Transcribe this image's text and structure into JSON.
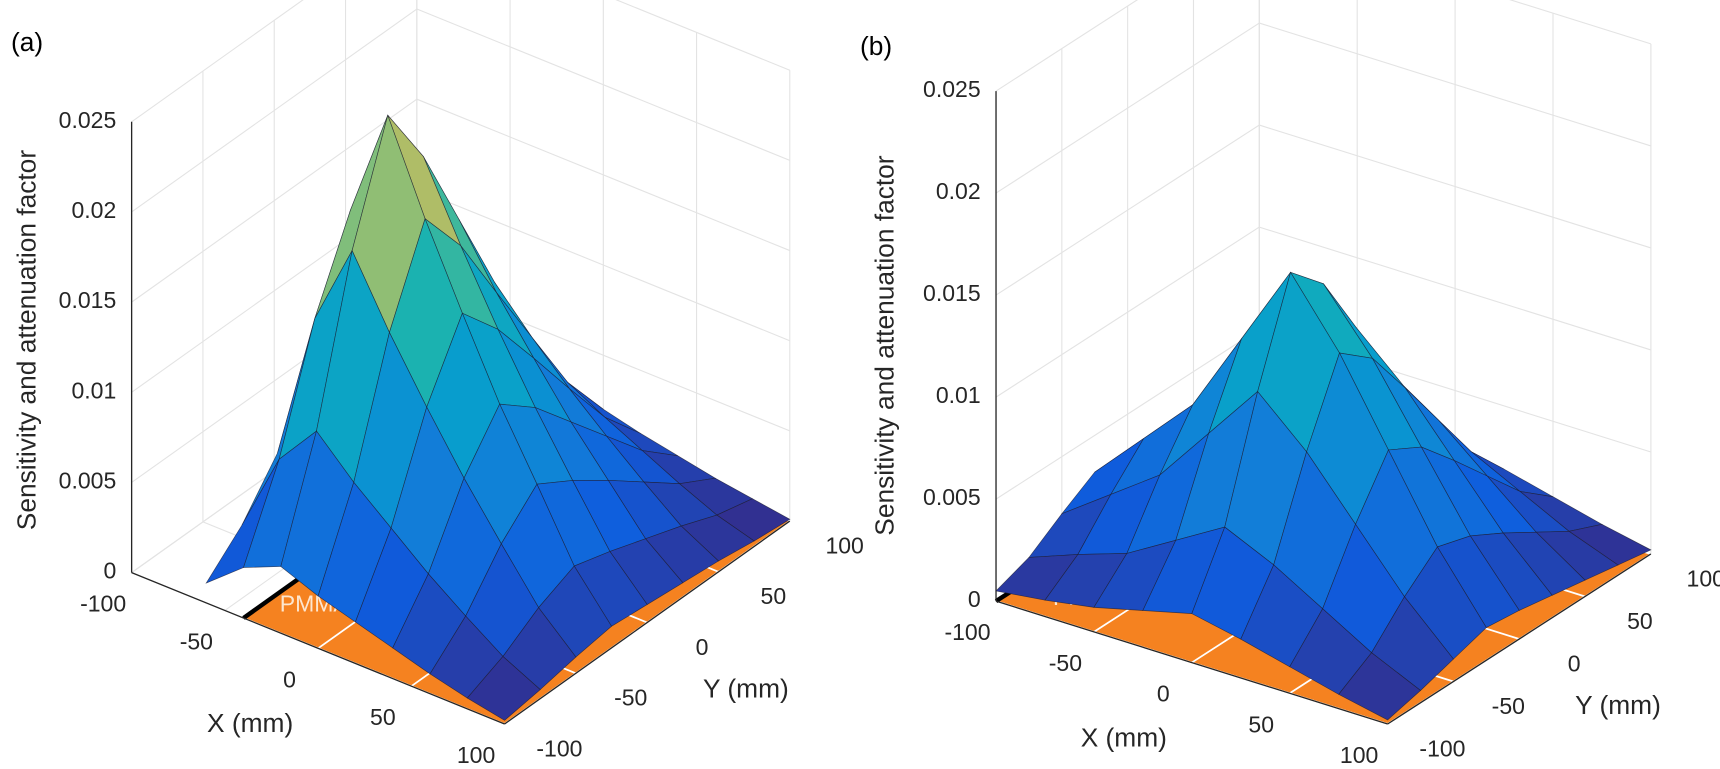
{
  "chart_data": [
    {
      "type": "surface",
      "panel_label": "(a)",
      "zlabel": "Sensitivity and attenuation factor",
      "xlabel": "X (mm)",
      "ylabel": "Y (mm)",
      "annotation": "PMMA",
      "plane_color": "#f58220",
      "colormap": "parula",
      "grid": true,
      "xlim": [
        -100,
        100
      ],
      "ylim": [
        -100,
        100
      ],
      "zlim": [
        0,
        0.025
      ],
      "xticks": [
        -100,
        -50,
        0,
        50,
        100
      ],
      "yticks": [
        -100,
        -50,
        0,
        50,
        100
      ],
      "zticks": [
        0,
        0.005,
        0.01,
        0.015,
        0.02,
        0.025
      ],
      "x": [
        -60,
        -40,
        -20,
        0,
        20,
        40,
        60,
        80,
        100
      ],
      "y": [
        -100,
        -75,
        -50,
        -25,
        0,
        25,
        50,
        75,
        100
      ],
      "z": [
        [
          0.0011,
          0.0028,
          0.0037,
          0.0029,
          0.0023,
          0.0017,
          0.0011,
          0.0006,
          0.0002
        ],
        [
          0.0029,
          0.0074,
          0.0098,
          0.0078,
          0.0061,
          0.0044,
          0.0029,
          0.0015,
          0.0005
        ],
        [
          0.0055,
          0.0138,
          0.0184,
          0.0147,
          0.0114,
          0.0083,
          0.0055,
          0.0028,
          0.0009
        ],
        [
          0.0074,
          0.0184,
          0.0245,
          0.0196,
          0.0152,
          0.011,
          0.0074,
          0.0037,
          0.0012
        ],
        [
          0.0062,
          0.0156,
          0.0208,
          0.0167,
          0.0129,
          0.0094,
          0.0062,
          0.0031,
          0.001
        ],
        [
          0.0048,
          0.0119,
          0.0159,
          0.0127,
          0.0099,
          0.0072,
          0.0048,
          0.0024,
          0.0008
        ],
        [
          0.0033,
          0.0083,
          0.011,
          0.0088,
          0.0068,
          0.005,
          0.0033,
          0.0017,
          0.0006
        ],
        [
          0.0018,
          0.0046,
          0.0061,
          0.0049,
          0.0038,
          0.0028,
          0.0018,
          0.0009,
          0.0003
        ],
        [
          0.0007,
          0.0018,
          0.0025,
          0.002,
          0.0015,
          0.0011,
          0.0007,
          0.0004,
          0.0001
        ]
      ]
    },
    {
      "type": "surface",
      "panel_label": "(b)",
      "zlabel": "Sensitivity and attenuation factor",
      "xlabel": "X (mm)",
      "ylabel": "Y (mm)",
      "annotation": "PMMA",
      "plane_color": "#f58220",
      "colormap": "parula",
      "grid": true,
      "xlim": [
        -100,
        100
      ],
      "ylim": [
        -100,
        100
      ],
      "zlim": [
        0,
        0.025
      ],
      "xticks": [
        -100,
        -50,
        0,
        50,
        100
      ],
      "yticks": [
        -100,
        -50,
        0,
        50,
        100
      ],
      "zticks": [
        0,
        0.005,
        0.01,
        0.015,
        0.02,
        0.025
      ],
      "x": [
        -100,
        -75,
        -50,
        -25,
        0,
        25,
        50,
        75,
        100
      ],
      "y": [
        -100,
        -75,
        -50,
        -25,
        0,
        25,
        50,
        75,
        100
      ],
      "z": [
        [
          0.0005,
          0.0008,
          0.0012,
          0.0018,
          0.0024,
          0.0019,
          0.0013,
          0.0007,
          0.0002
        ],
        [
          0.0011,
          0.002,
          0.0028,
          0.0042,
          0.0056,
          0.0045,
          0.0031,
          0.0017,
          0.0006
        ],
        [
          0.0022,
          0.0039,
          0.0056,
          0.0084,
          0.0112,
          0.009,
          0.0062,
          0.0034,
          0.0011
        ],
        [
          0.0032,
          0.0056,
          0.008,
          0.012,
          0.016,
          0.0128,
          0.0088,
          0.0048,
          0.0016
        ],
        [
          0.0029,
          0.005,
          0.0072,
          0.0108,
          0.0144,
          0.0115,
          0.0079,
          0.0043,
          0.0014
        ],
        [
          0.0022,
          0.0039,
          0.0056,
          0.0084,
          0.0112,
          0.009,
          0.0062,
          0.0034,
          0.0011
        ],
        [
          0.0016,
          0.0028,
          0.004,
          0.006,
          0.008,
          0.0064,
          0.0044,
          0.0024,
          0.0008
        ],
        [
          0.001,
          0.0017,
          0.0024,
          0.0036,
          0.0048,
          0.0038,
          0.0026,
          0.0014,
          0.0005
        ],
        [
          0.0005,
          0.0008,
          0.0012,
          0.0018,
          0.0024,
          0.0019,
          0.0013,
          0.0007,
          0.0002
        ]
      ]
    }
  ]
}
